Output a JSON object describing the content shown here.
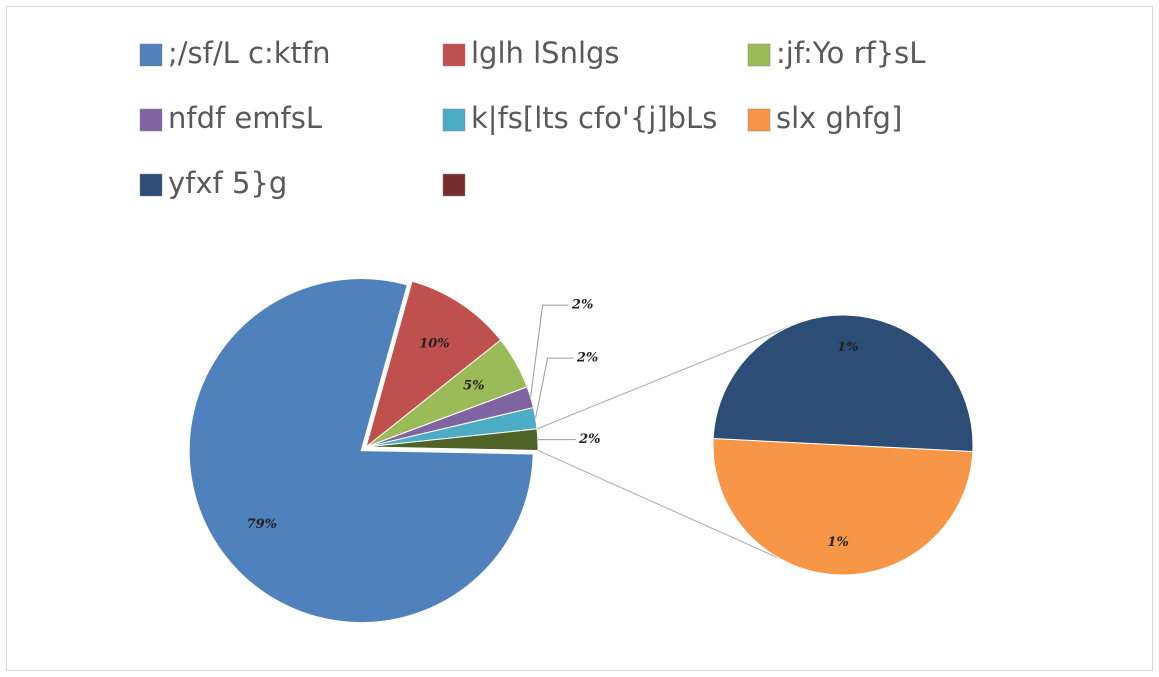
{
  "chart_data": {
    "type": "pie-of-pie",
    "categories": [
      ";/sf/L c:ktfn",
      "lglh lSnlgs",
      ":jf:Yo rf}sL",
      "nfdf emfsL",
      "k|fs[lts cfo'{j]bLs",
      "slx ghfg]",
      "yfxf 5}g",
      null
    ],
    "values": [
      79,
      10,
      5,
      2,
      2,
      1,
      1,
      null
    ],
    "value_labels": [
      "79%",
      "10%",
      "5%",
      "2%",
      "2%",
      "1%",
      "1%",
      null
    ],
    "colors": [
      "#4f81bd",
      "#c0504d",
      "#9bbb59",
      "#8064a2",
      "#4bacc6",
      "#f79646",
      "#2c4d75",
      "#772c2a"
    ],
    "second_plot_count": 2,
    "other_value": 2,
    "other_label": "2%",
    "other_color": "#4f6228",
    "legend": "top"
  }
}
